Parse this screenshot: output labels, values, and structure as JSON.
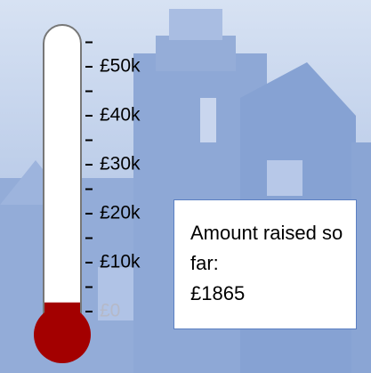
{
  "chart_data": {
    "type": "thermometer",
    "label": "Amount raised so far:",
    "values": [
      1865
    ],
    "value_labels": [
      "£1865"
    ],
    "color": "#a30000",
    "ylim": [
      0,
      60000
    ],
    "yticks": [
      {
        "value": 0,
        "label": "£0"
      },
      {
        "value": 10000,
        "label": "£10k"
      },
      {
        "value": 20000,
        "label": "£20k"
      },
      {
        "value": 30000,
        "label": "£30k"
      },
      {
        "value": 40000,
        "label": "£40k"
      },
      {
        "value": 50000,
        "label": "£50k"
      }
    ],
    "minor_ticks": [
      5000,
      15000,
      25000,
      35000,
      45000,
      55000
    ]
  }
}
